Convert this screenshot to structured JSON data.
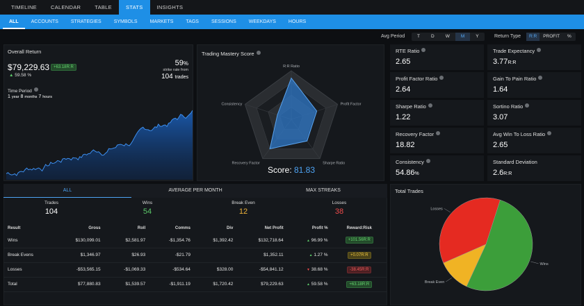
{
  "top_nav": [
    "TIMELINE",
    "CALENDAR",
    "TABLE",
    "STATS",
    "INSIGHTS"
  ],
  "sub_nav": [
    "ALL",
    "ACCOUNTS",
    "STRATEGIES",
    "SYMBOLS",
    "MARKETS",
    "TAGS",
    "SESSIONS",
    "WEEKDAYS",
    "HOURS"
  ],
  "avg_period": {
    "label": "Avg Period",
    "options": [
      "T",
      "D",
      "W",
      "M",
      "Y"
    ],
    "selected": "M"
  },
  "return_type": {
    "label": "Return Type",
    "options": [
      "R:R",
      "PROFIT",
      "%"
    ],
    "selected": "R:R"
  },
  "overall": {
    "title": "Overall Return",
    "value": "$79,229.63",
    "badge": "+63.18R:R",
    "pct": "59.58",
    "pct_unit": "%",
    "strike": "59",
    "strike_unit": "%",
    "strike_text": "strike rate from",
    "trades": "104",
    "trades_unit": "trades",
    "period_title": "Time Period",
    "p1": "1",
    "p1u": "year",
    "p2": "8",
    "p2u": "months",
    "p3": "7",
    "p3u": "hours"
  },
  "mastery": {
    "title": "Trading Mastery Score",
    "axes": [
      "R:R Ratio",
      "Profit Factor",
      "Sharpe Ratio",
      "Recovery Factor",
      "Consistency"
    ],
    "values": [
      0.85,
      0.55,
      0.55,
      0.75,
      0.3
    ],
    "score_label": "Score:",
    "score": "81.83"
  },
  "stats": [
    {
      "label": "RTE Ratio",
      "value": "2.65",
      "unit": ""
    },
    {
      "label": "Trade Expectancy",
      "value": "3.77",
      "unit": "R:R"
    },
    {
      "label": "Profit Factor Ratio",
      "value": "2.64",
      "unit": ""
    },
    {
      "label": "Gain To Pain Ratio",
      "value": "1.64",
      "unit": ""
    },
    {
      "label": "Sharpe Ratio",
      "value": "1.22",
      "unit": ""
    },
    {
      "label": "Sortino Ratio",
      "value": "3.07",
      "unit": ""
    },
    {
      "label": "Recovery Factor",
      "value": "18.82",
      "unit": ""
    },
    {
      "label": "Avg Win To Loss Ratio",
      "value": "2.65",
      "unit": ""
    },
    {
      "label": "Consistency",
      "value": "54.86",
      "unit": "%"
    },
    {
      "label": "Standard Deviation",
      "value": "2.6",
      "unit": "R:R"
    }
  ],
  "result_tabs": [
    "ALL",
    "AVERAGE PER MONTH",
    "MAX STREAKS"
  ],
  "summary": [
    {
      "label": "Trades",
      "value": "104",
      "color": "#ffffff"
    },
    {
      "label": "Wins",
      "value": "54",
      "color": "#5cc96a"
    },
    {
      "label": "Break Even",
      "value": "12",
      "color": "#f0b43a"
    },
    {
      "label": "Losses",
      "value": "38",
      "color": "#ee4b4b"
    }
  ],
  "table": {
    "headers": [
      "Result",
      "Gross",
      "Roll",
      "Comms",
      "Div",
      "Net Profit",
      "Profit %",
      "Reward:Risk"
    ],
    "rows": [
      {
        "cells": [
          "Wins",
          "$130,099.01",
          "$2,581.97",
          "-$1,354.76",
          "$1,392.42",
          "$132,718.64",
          "96.99 %",
          "+101.56R:R"
        ],
        "dir": "up",
        "badge": "green"
      },
      {
        "cells": [
          "Break Evens",
          "$1,346.97",
          "$26.93",
          "-$21.79",
          "",
          "$1,352.11",
          "1.27 %",
          "+0.07R:R"
        ],
        "dir": "up",
        "badge": "yellow"
      },
      {
        "cells": [
          "Losses",
          "-$53,565.15",
          "-$1,069.33",
          "-$534.64",
          "$328.00",
          "-$54,841.12",
          "38.68 %",
          "-38.45R:R"
        ],
        "dir": "down",
        "badge": "red"
      },
      {
        "cells": [
          "Total",
          "$77,880.83",
          "$1,539.57",
          "-$1,911.19",
          "$1,720.42",
          "$79,229.63",
          "59.58 %",
          "+63.18R:R"
        ],
        "dir": "up",
        "badge": "green"
      }
    ]
  },
  "total_trades": {
    "title": "Total Trades",
    "slices": [
      {
        "name": "Wins",
        "value": 54,
        "color": "#3c9e3a"
      },
      {
        "name": "Break Even",
        "value": 12,
        "color": "#f0b324"
      },
      {
        "name": "Losses",
        "value": 38,
        "color": "#e52a21"
      }
    ]
  }
}
